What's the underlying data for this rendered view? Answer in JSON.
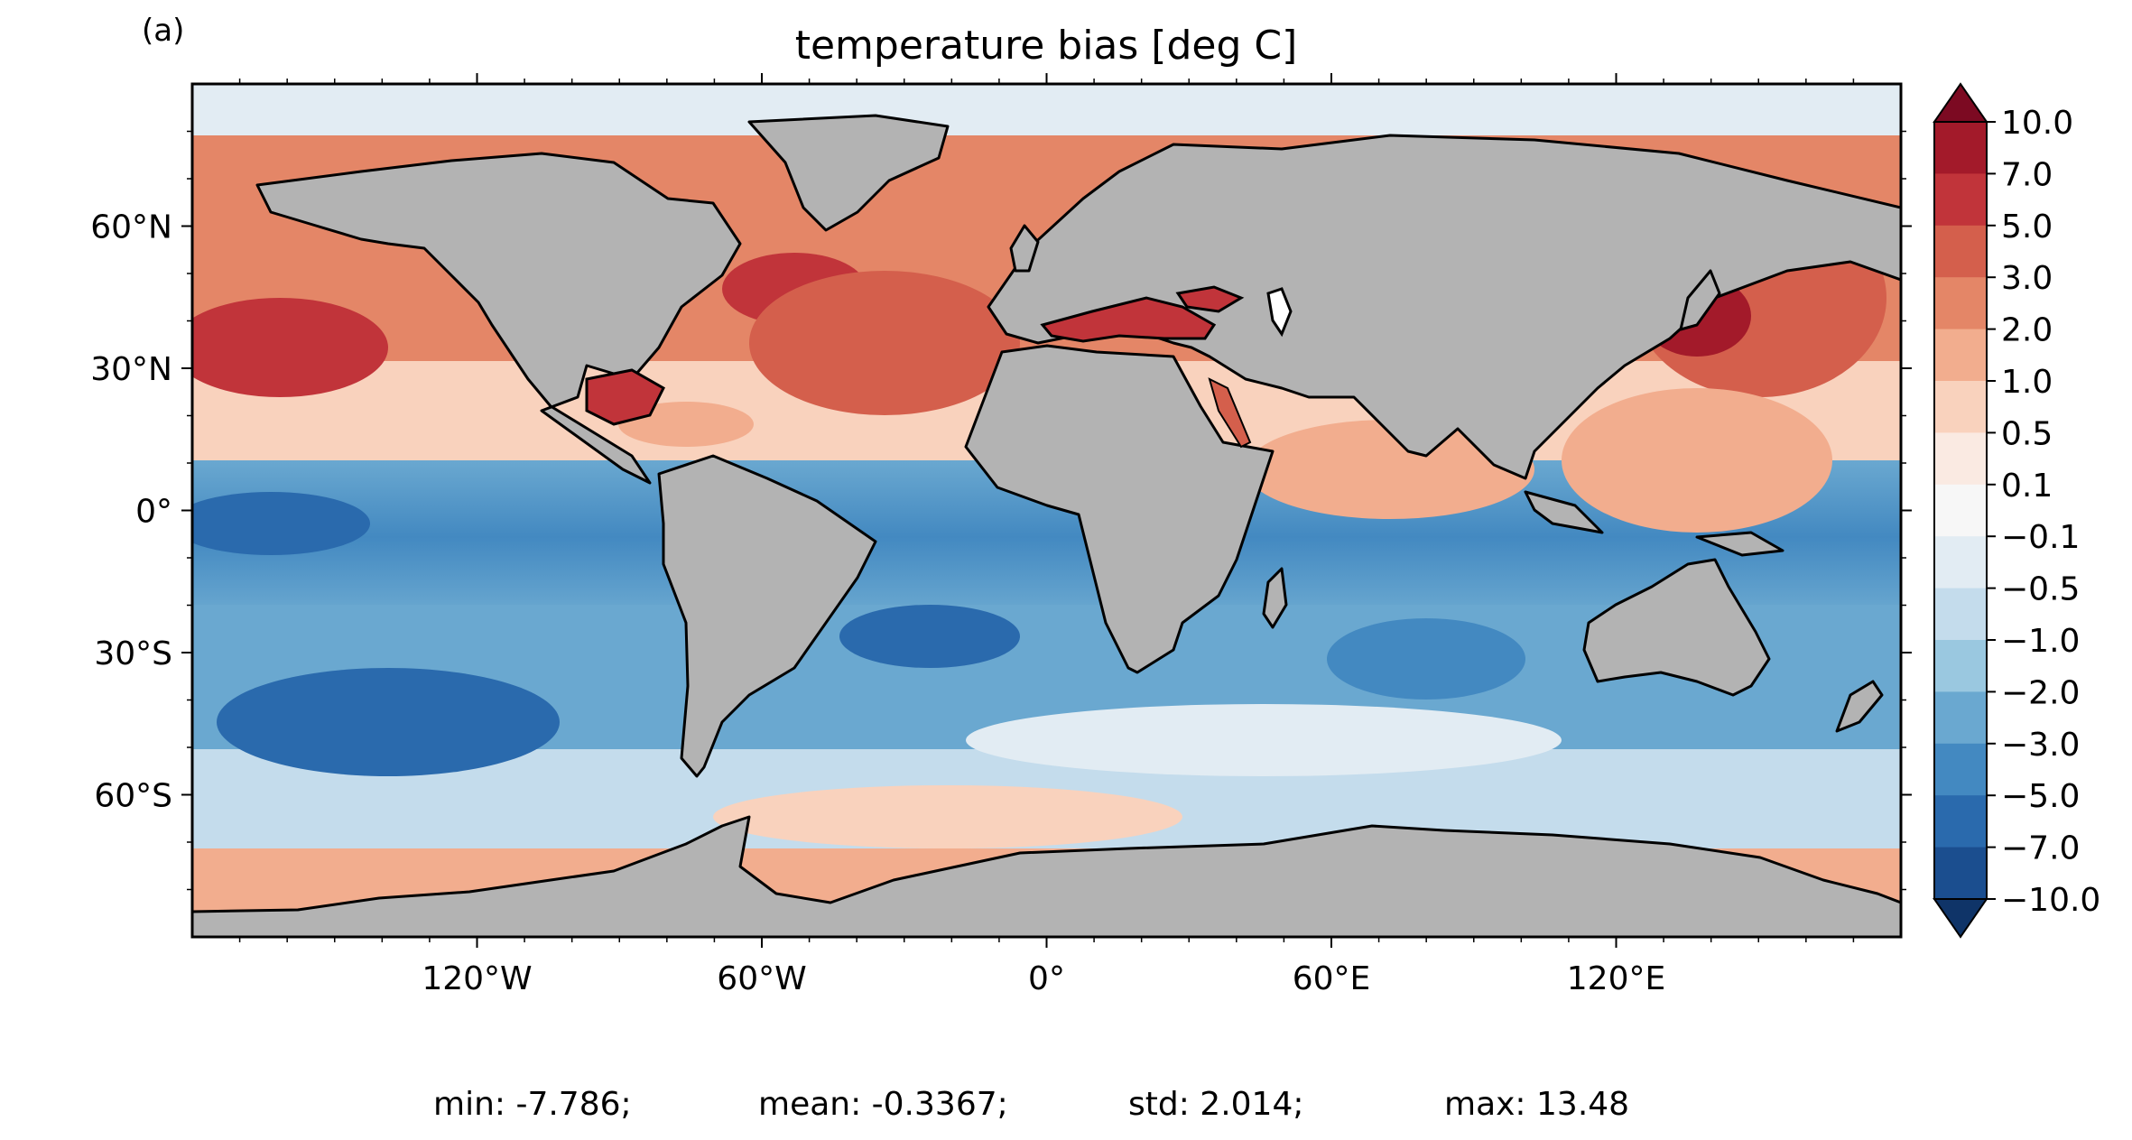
{
  "panel_label": "(a)",
  "title": "temperature bias [deg C]",
  "colorbar": {
    "levels": [
      "10.0",
      "7.0",
      "5.0",
      "3.0",
      "2.0",
      "1.0",
      "0.5",
      "0.1",
      "−0.1",
      "−0.5",
      "−1.0",
      "−2.0",
      "−3.0",
      "−5.0",
      "−7.0",
      "−10.0"
    ],
    "colors": [
      "#7c0a22",
      "#a31a2a",
      "#c1343a",
      "#d45f4c",
      "#e48667",
      "#f2ad8e",
      "#f9d2bd",
      "#faeae2",
      "#f7f7f7",
      "#e2ecf3",
      "#c4dcec",
      "#9ac8e0",
      "#6aa8d0",
      "#4389c1",
      "#2a6aad",
      "#1b4e8f",
      "#0f3468"
    ]
  },
  "y_ticks": [
    {
      "lat": 60,
      "label": "60°N"
    },
    {
      "lat": 30,
      "label": "30°N"
    },
    {
      "lat": 0,
      "label": "0°"
    },
    {
      "lat": -30,
      "label": "30°S"
    },
    {
      "lat": -60,
      "label": "60°S"
    }
  ],
  "x_ticks": [
    {
      "lon": -120,
      "label": "120°W"
    },
    {
      "lon": -60,
      "label": "60°W"
    },
    {
      "lon": 0,
      "label": "0°"
    },
    {
      "lon": 60,
      "label": "60°E"
    },
    {
      "lon": 120,
      "label": "120°E"
    }
  ],
  "stats": {
    "min": "min: -7.786;",
    "mean": "mean: -0.3367;",
    "std": "std: 2.014;",
    "max": "max: 13.48"
  },
  "colors": {
    "land": "#b3b3b3",
    "coast": "#000000"
  }
}
